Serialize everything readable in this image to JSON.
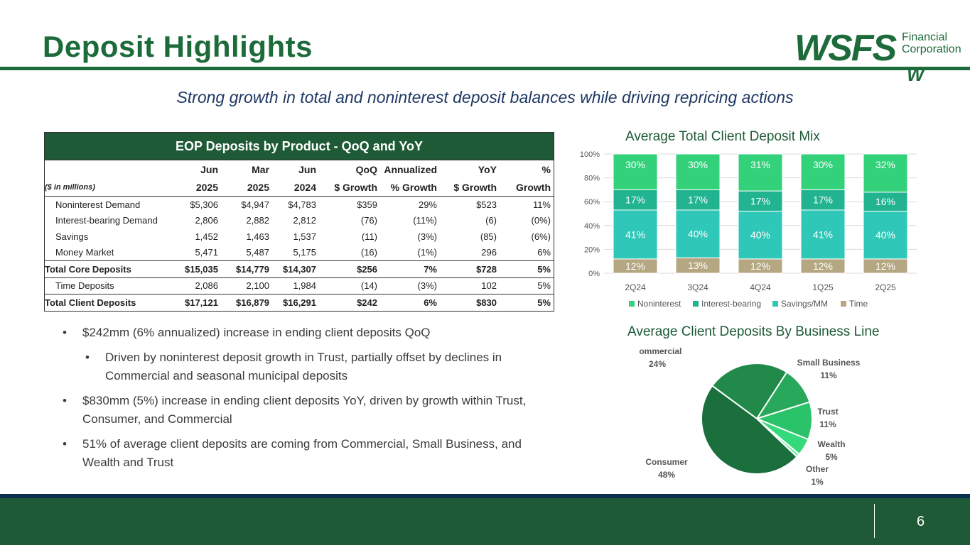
{
  "header": {
    "title": "Deposit Highlights",
    "subtitle": "Strong growth in total and noninterest deposit balances while driving repricing actions"
  },
  "logo": {
    "wordmark": "WSFS",
    "line1": "Financial",
    "line2": "Corporation",
    "mark": "W"
  },
  "table": {
    "title": "EOP Deposits by Product - QoQ and YoY",
    "units_note": "($ in millions)",
    "header_row1": [
      "Jun",
      "Mar",
      "Jun",
      "QoQ",
      "Annualized",
      "YoY",
      "%"
    ],
    "header_row2": [
      "2025",
      "2025",
      "2024",
      "$ Growth",
      "% Growth",
      "$ Growth",
      "Growth"
    ],
    "rows": [
      {
        "label": "Noninterest Demand",
        "values": [
          "$5,306",
          "$4,947",
          "$4,783",
          "$359",
          "29%",
          "$523",
          "11%"
        ]
      },
      {
        "label": "Interest-bearing Demand",
        "values": [
          "2,806",
          "2,882",
          "2,812",
          "(76)",
          "(11%)",
          "(6)",
          "(0%)"
        ]
      },
      {
        "label": "Savings",
        "values": [
          "1,452",
          "1,463",
          "1,537",
          "(11)",
          "(3%)",
          "(85)",
          "(6%)"
        ]
      },
      {
        "label": "Money Market",
        "values": [
          "5,471",
          "5,487",
          "5,175",
          "(16)",
          "(1%)",
          "296",
          "6%"
        ]
      }
    ],
    "total_core": {
      "label": "Total Core Deposits",
      "values": [
        "$15,035",
        "$14,779",
        "$14,307",
        "$256",
        "7%",
        "$728",
        "5%"
      ]
    },
    "time_row": {
      "label": "Time Deposits",
      "values": [
        "2,086",
        "2,100",
        "1,984",
        "(14)",
        "(3%)",
        "102",
        "5%"
      ]
    },
    "total_client": {
      "label": "Total Client Deposits",
      "values": [
        "$17,121",
        "$16,879",
        "$16,291",
        "$242",
        "6%",
        "$830",
        "5%"
      ]
    }
  },
  "bullets": {
    "b1": "$242mm (6% annualized) increase in ending client deposits QoQ",
    "b1_sub": "Driven by noninterest deposit growth in Trust, partially offset by declines in Commercial and seasonal municipal deposits",
    "b2": "$830mm (5%) increase in ending client deposits YoY, driven by growth within Trust, Consumer, and Commercial",
    "b3": "51% of average client deposits are coming from Commercial, Small Business, and Wealth and Trust"
  },
  "chart_data": [
    {
      "type": "bar",
      "stacked": true,
      "title": "Average Total Client Deposit Mix",
      "categories": [
        "2Q24",
        "3Q24",
        "4Q24",
        "1Q25",
        "2Q25"
      ],
      "ylim": [
        0,
        100
      ],
      "yticks": [
        "0%",
        "20%",
        "40%",
        "60%",
        "80%",
        "100%"
      ],
      "grid": true,
      "legend": "bottom",
      "series": [
        {
          "name": "Time",
          "color": "#b5a782",
          "values": [
            12,
            13,
            12,
            12,
            12
          ]
        },
        {
          "name": "Savings/MM",
          "color": "#2ec7b8",
          "values": [
            41,
            40,
            40,
            41,
            40
          ]
        },
        {
          "name": "Interest-bearing",
          "color": "#22b391",
          "values": [
            17,
            17,
            17,
            17,
            16
          ]
        },
        {
          "name": "Noninterest",
          "color": "#33d17a",
          "values": [
            30,
            30,
            31,
            30,
            32
          ]
        }
      ],
      "legend_order": [
        "Noninterest",
        "Interest-bearing",
        "Savings/MM",
        "Time"
      ]
    },
    {
      "type": "pie",
      "title": "Average Client Deposits By Business Line",
      "slices": [
        {
          "name": "Commercial",
          "value": 24,
          "label": "24%",
          "color": "#218a4a"
        },
        {
          "name": "Small Business",
          "value": 11,
          "label": "11%",
          "color": "#27a85a"
        },
        {
          "name": "Trust",
          "value": 11,
          "label": "11%",
          "color": "#2bc36a"
        },
        {
          "name": "Wealth",
          "value": 5,
          "label": "5%",
          "color": "#33d97a"
        },
        {
          "name": "Other",
          "value": 1,
          "label": "1%",
          "color": "#7fe8a8"
        },
        {
          "name": "Consumer",
          "value": 48,
          "label": "48%",
          "color": "#1a6f3c"
        }
      ]
    }
  ],
  "footer": {
    "page_number": "6"
  }
}
